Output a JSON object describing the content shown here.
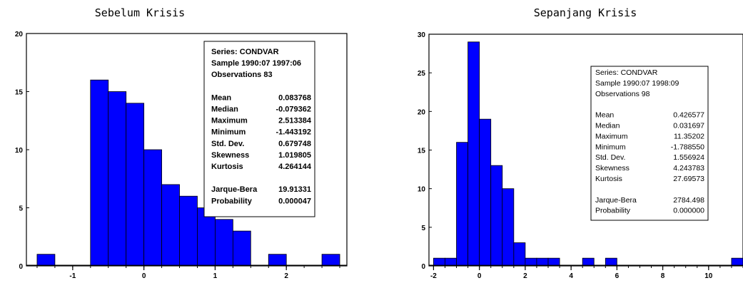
{
  "chart_data": [
    {
      "type": "bar",
      "title": "Sebelum Krisis",
      "xlabel": "",
      "ylabel": "",
      "xlim": [
        -1.65,
        2.85
      ],
      "ylim": [
        0,
        20
      ],
      "x_ticks": [
        -1,
        0,
        1,
        2
      ],
      "y_ticks": [
        0,
        5,
        10,
        15,
        20
      ],
      "bin_width": 0.25,
      "bins": [
        {
          "x0": -1.5,
          "x1": -1.25,
          "count": 1
        },
        {
          "x0": -1.25,
          "x1": -1.0,
          "count": 0
        },
        {
          "x0": -1.0,
          "x1": -0.75,
          "count": 0
        },
        {
          "x0": -0.75,
          "x1": -0.5,
          "count": 16
        },
        {
          "x0": -0.5,
          "x1": -0.25,
          "count": 15
        },
        {
          "x0": -0.25,
          "x1": 0.0,
          "count": 14
        },
        {
          "x0": 0.0,
          "x1": 0.25,
          "count": 10
        },
        {
          "x0": 0.25,
          "x1": 0.5,
          "count": 7
        },
        {
          "x0": 0.5,
          "x1": 0.75,
          "count": 6
        },
        {
          "x0": 0.75,
          "x1": 1.0,
          "count": 5
        },
        {
          "x0": 1.0,
          "x1": 1.25,
          "count": 4
        },
        {
          "x0": 1.25,
          "x1": 1.5,
          "count": 3
        },
        {
          "x0": 1.5,
          "x1": 1.75,
          "count": 0
        },
        {
          "x0": 1.75,
          "x1": 2.0,
          "count": 1
        },
        {
          "x0": 2.0,
          "x1": 2.25,
          "count": 0
        },
        {
          "x0": 2.25,
          "x1": 2.5,
          "count": 0
        },
        {
          "x0": 2.5,
          "x1": 2.75,
          "count": 1
        }
      ],
      "bar_color": "#0000ff",
      "stats_box": {
        "bold": true,
        "header": [
          "Series: CONDVAR",
          "Sample 1990:07 1997:06",
          "Observations 83"
        ],
        "rows": [
          {
            "label": "Mean",
            "value": "0.083768"
          },
          {
            "label": "Median",
            "value": "-0.079362"
          },
          {
            "label": "Maximum",
            "value": "2.513384"
          },
          {
            "label": "Minimum",
            "value": "-1.443192"
          },
          {
            "label": "Std. Dev.",
            "value": "0.679748"
          },
          {
            "label": "Skewness",
            "value": "1.019805"
          },
          {
            "label": "Kurtosis",
            "value": "4.264144"
          }
        ],
        "tests": [
          {
            "label": "Jarque-Bera",
            "value": "19.91331"
          },
          {
            "label": "Probability",
            "value": "0.000047"
          }
        ]
      }
    },
    {
      "type": "bar",
      "title": "Sepanjang Krisis",
      "xlabel": "",
      "ylabel": "",
      "xlim": [
        -2.2,
        11.5
      ],
      "ylim": [
        0,
        30
      ],
      "x_ticks": [
        -2,
        0,
        2,
        4,
        6,
        8,
        10
      ],
      "y_ticks": [
        0,
        5,
        10,
        15,
        20,
        25,
        30
      ],
      "bin_width": 0.5,
      "bins": [
        {
          "x0": -2.0,
          "x1": -1.5,
          "count": 1
        },
        {
          "x0": -1.5,
          "x1": -1.0,
          "count": 1
        },
        {
          "x0": -1.0,
          "x1": -0.5,
          "count": 16
        },
        {
          "x0": -0.5,
          "x1": 0.0,
          "count": 29
        },
        {
          "x0": 0.0,
          "x1": 0.5,
          "count": 19
        },
        {
          "x0": 0.5,
          "x1": 1.0,
          "count": 13
        },
        {
          "x0": 1.0,
          "x1": 1.5,
          "count": 10
        },
        {
          "x0": 1.5,
          "x1": 2.0,
          "count": 3
        },
        {
          "x0": 2.0,
          "x1": 2.5,
          "count": 1
        },
        {
          "x0": 2.5,
          "x1": 3.0,
          "count": 1
        },
        {
          "x0": 3.0,
          "x1": 3.5,
          "count": 1
        },
        {
          "x0": 4.5,
          "x1": 5.0,
          "count": 1
        },
        {
          "x0": 5.5,
          "x1": 6.0,
          "count": 1
        },
        {
          "x0": 11.0,
          "x1": 11.5,
          "count": 1
        }
      ],
      "bar_color": "#0000ff",
      "stats_box": {
        "bold": false,
        "header": [
          "Series: CONDVAR",
          "Sample 1990:07 1998:09",
          "Observations 98"
        ],
        "rows": [
          {
            "label": "Mean",
            "value": "0.426577"
          },
          {
            "label": "Median",
            "value": "0.031697"
          },
          {
            "label": "Maximum",
            "value": "11.35202"
          },
          {
            "label": "Minimum",
            "value": "-1.788550"
          },
          {
            "label": "Std. Dev.",
            "value": "1.556924"
          },
          {
            "label": "Skewness",
            "value": "4.243783"
          },
          {
            "label": "Kurtosis",
            "value": "27.69573"
          }
        ],
        "tests": [
          {
            "label": "Jarque-Bera",
            "value": "2784.498"
          },
          {
            "label": "Probability",
            "value": "0.000000"
          }
        ]
      }
    }
  ]
}
